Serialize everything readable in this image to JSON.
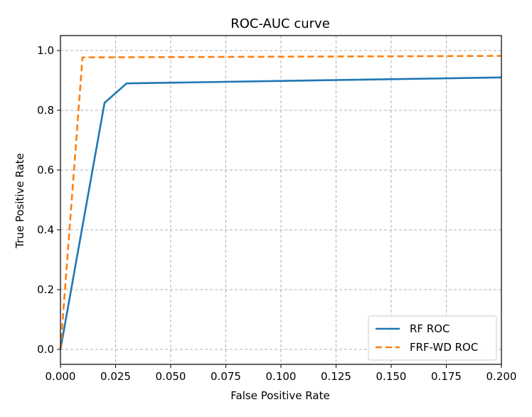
{
  "chart_data": {
    "type": "line",
    "title": "ROC-AUC curve",
    "xlabel": "False Positive Rate",
    "ylabel": "True Positive Rate",
    "xlim": [
      0.0,
      0.2
    ],
    "ylim": [
      -0.05,
      1.05
    ],
    "x_ticks": [
      "0.000",
      "0.025",
      "0.050",
      "0.075",
      "0.100",
      "0.125",
      "0.150",
      "0.175",
      "0.200"
    ],
    "y_ticks": [
      "0.0",
      "0.2",
      "0.4",
      "0.6",
      "0.8",
      "1.0"
    ],
    "grid": true,
    "legend_position": "bottom-right",
    "series": [
      {
        "name": "RF ROC",
        "color": "#1f77b4",
        "line_style": "solid",
        "points": [
          [
            0.0,
            0.0
          ],
          [
            0.02,
            0.825
          ],
          [
            0.03,
            0.89
          ],
          [
            0.2,
            0.91
          ]
        ]
      },
      {
        "name": "FRF-WD ROC",
        "color": "#ff7f0e",
        "line_style": "dashed",
        "points": [
          [
            0.0,
            0.0
          ],
          [
            0.01,
            0.977
          ],
          [
            0.2,
            0.982
          ]
        ]
      }
    ]
  }
}
